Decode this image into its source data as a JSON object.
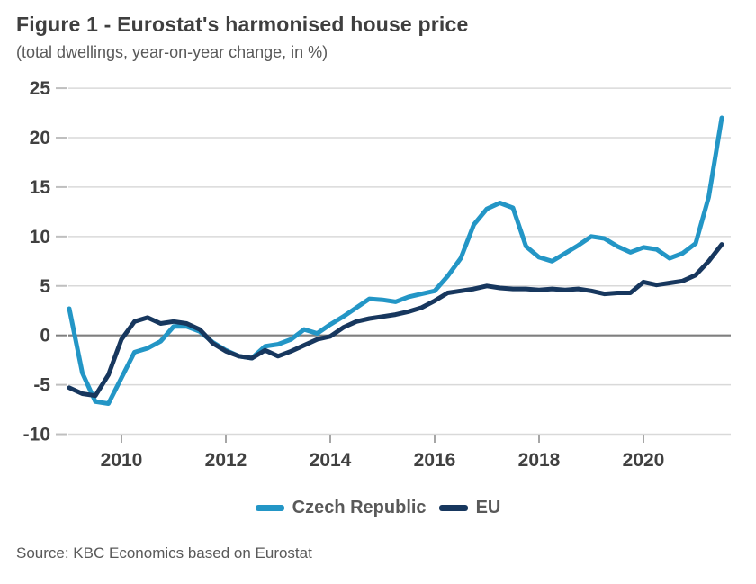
{
  "figure": {
    "title": "Figure 1 - Eurostat's harmonised house price",
    "subtitle": "(total dwellings, year-on-year change, in %)",
    "source": "Source: KBC Economics based on Eurostat"
  },
  "colors": {
    "czech_republic": "#2396C6",
    "eu": "#17375E",
    "gridline": "#d9d9d9",
    "zero_line": "#7f7f7f",
    "tick": "#bfbfbf",
    "axis_text": "#404040"
  },
  "chart_data": {
    "type": "line",
    "title": "Figure 1 - Eurostat's harmonised house price",
    "subtitle": "(total dwellings, year-on-year change, in %)",
    "frequency": "quarterly",
    "x_range": [
      "2009Q1",
      "2021Q3"
    ],
    "ylim": [
      -10,
      25
    ],
    "y_ticks": [
      25,
      20,
      15,
      10,
      5,
      0,
      -5,
      -10
    ],
    "x_label_ticks": [
      2010,
      2012,
      2014,
      2016,
      2018,
      2020
    ],
    "grid": "horizontal",
    "legend_position": "bottom",
    "x": [
      "2009Q1",
      "2009Q2",
      "2009Q3",
      "2009Q4",
      "2010Q1",
      "2010Q2",
      "2010Q3",
      "2010Q4",
      "2011Q1",
      "2011Q2",
      "2011Q3",
      "2011Q4",
      "2012Q1",
      "2012Q2",
      "2012Q3",
      "2012Q4",
      "2013Q1",
      "2013Q2",
      "2013Q3",
      "2013Q4",
      "2014Q1",
      "2014Q2",
      "2014Q3",
      "2014Q4",
      "2015Q1",
      "2015Q2",
      "2015Q3",
      "2015Q4",
      "2016Q1",
      "2016Q2",
      "2016Q3",
      "2016Q4",
      "2017Q1",
      "2017Q2",
      "2017Q3",
      "2017Q4",
      "2018Q1",
      "2018Q2",
      "2018Q3",
      "2018Q4",
      "2019Q1",
      "2019Q2",
      "2019Q3",
      "2019Q4",
      "2020Q1",
      "2020Q2",
      "2020Q3",
      "2020Q4",
      "2021Q1",
      "2021Q2",
      "2021Q3"
    ],
    "series": [
      {
        "name": "Czech Republic",
        "color": "#2396C6",
        "values": [
          2.7,
          -3.8,
          -6.7,
          -6.9,
          -4.3,
          -1.7,
          -1.3,
          -0.6,
          0.9,
          0.9,
          0.4,
          -0.7,
          -1.5,
          -2.1,
          -2.3,
          -1.1,
          -0.9,
          -0.4,
          0.6,
          0.2,
          1.1,
          1.9,
          2.8,
          3.7,
          3.6,
          3.4,
          3.9,
          4.2,
          4.5,
          6.0,
          7.8,
          11.2,
          12.8,
          13.4,
          12.9,
          9.0,
          7.9,
          7.5,
          8.3,
          9.1,
          10.0,
          9.8,
          9.0,
          8.4,
          8.9,
          8.7,
          7.8,
          8.3,
          9.3,
          14.0,
          22.0
        ]
      },
      {
        "name": "EU",
        "color": "#17375E",
        "values": [
          -5.3,
          -5.9,
          -6.1,
          -4.0,
          -0.4,
          1.4,
          1.8,
          1.2,
          1.4,
          1.2,
          0.6,
          -0.8,
          -1.6,
          -2.1,
          -2.3,
          -1.5,
          -2.1,
          -1.6,
          -1.0,
          -0.4,
          -0.1,
          0.8,
          1.4,
          1.7,
          1.9,
          2.1,
          2.4,
          2.8,
          3.5,
          4.3,
          4.5,
          4.7,
          5.0,
          4.8,
          4.7,
          4.7,
          4.6,
          4.7,
          4.6,
          4.7,
          4.5,
          4.2,
          4.3,
          4.3,
          5.4,
          5.1,
          5.3,
          5.5,
          6.1,
          7.5,
          9.2
        ]
      }
    ]
  }
}
